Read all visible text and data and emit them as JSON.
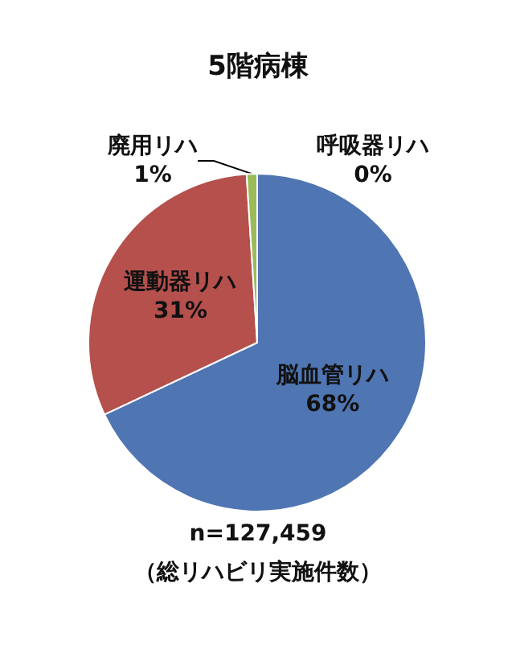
{
  "chart_data": {
    "type": "pie",
    "title": "5階病棟",
    "categories": [
      "脳血管リハ",
      "運動器リハ",
      "廃用リハ",
      "呼吸器リハ"
    ],
    "values": [
      68,
      31,
      1,
      0
    ],
    "value_labels": [
      "68%",
      "31%",
      "1%",
      "0%"
    ],
    "colors": [
      "#4f75b3",
      "#b5504d",
      "#9bbb59",
      "#7f64a0"
    ],
    "annotations": [
      "n=127,459",
      "（総リハビリ実施件数）"
    ]
  }
}
